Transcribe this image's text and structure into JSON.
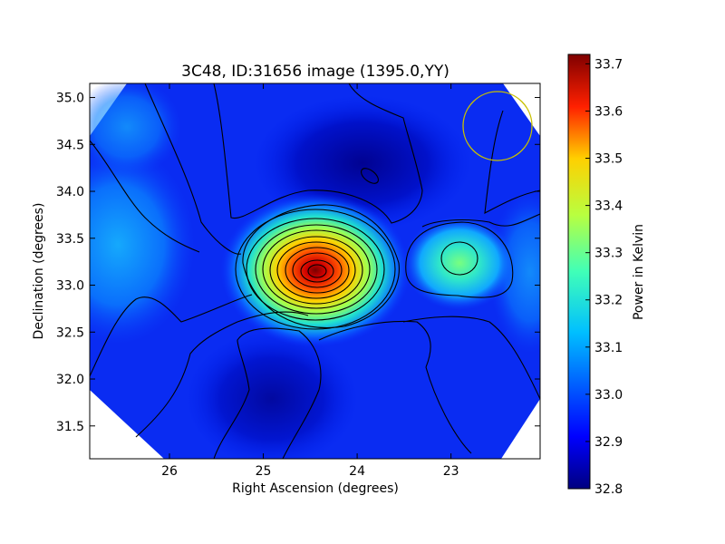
{
  "chart_data": {
    "type": "heatmap",
    "title": "3C48, ID:31656 image (1395.0,YY)",
    "xlabel": "Right Ascension (degrees)",
    "ylabel": "Declination (degrees)",
    "colorbar_label": "Power in Kelvin",
    "xlim": [
      26.85,
      22.05
    ],
    "ylim": [
      31.15,
      35.15
    ],
    "x_ticks": [
      26,
      25,
      24,
      23
    ],
    "x_tick_labels": [
      "26",
      "25",
      "24",
      "23"
    ],
    "y_ticks": [
      31.5,
      32.0,
      32.5,
      33.0,
      33.5,
      34.0,
      34.5,
      35.0
    ],
    "y_tick_labels": [
      "31.5",
      "32.0",
      "32.5",
      "33.0",
      "33.5",
      "34.0",
      "34.5",
      "35.0"
    ],
    "colorbar_range": [
      32.8,
      33.72
    ],
    "colorbar_ticks": [
      32.8,
      32.9,
      33.0,
      33.1,
      33.2,
      33.3,
      33.4,
      33.5,
      33.6,
      33.7
    ],
    "colorbar_tick_labels": [
      "32.8",
      "32.9",
      "33.0",
      "33.1",
      "33.2",
      "33.3",
      "33.4",
      "33.5",
      "33.6",
      "33.7"
    ],
    "colormap": "jet",
    "grid": false,
    "sources": [
      {
        "ra": 24.4,
        "dec": 33.15,
        "peak_kelvin": 33.72
      },
      {
        "ra": 22.9,
        "dec": 33.28,
        "peak_kelvin": 33.27
      }
    ],
    "beam": {
      "ra": 22.5,
      "dec": 34.7,
      "radius_deg": 0.36,
      "color": "#c8c000"
    },
    "contour_color": "#000000"
  }
}
